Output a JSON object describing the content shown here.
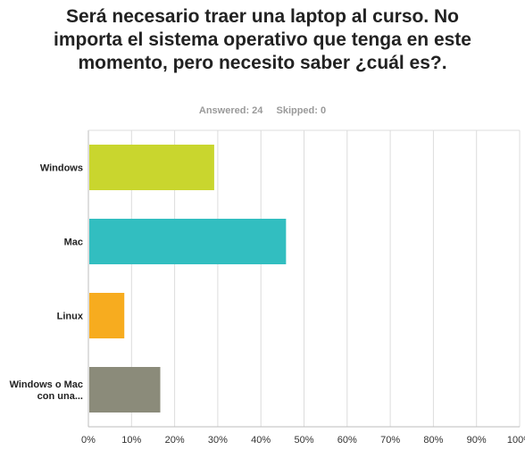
{
  "question": {
    "title": "Será necesario traer una laptop al curso. No importa el sistema operativo que tenga en este momento, pero necesito saber ¿cuál es?.",
    "answered": "Answered: 24",
    "skipped": "Skipped: 0"
  },
  "chart_data": {
    "type": "bar",
    "orientation": "horizontal",
    "title": "Será necesario traer una laptop al curso. No importa el sistema operativo que tenga en este momento, pero necesito saber ¿cuál es?.",
    "categories": [
      "Windows",
      "Mac",
      "Linux",
      "Windows o Mac con una..."
    ],
    "values": [
      29.17,
      45.83,
      8.33,
      16.67
    ],
    "colors": [
      "#c9d62e",
      "#32bec0",
      "#f7ac1f",
      "#8b8b7a"
    ],
    "xlim": [
      0,
      100
    ],
    "x_ticks": [
      "0%",
      "10%",
      "20%",
      "30%",
      "40%",
      "50%",
      "60%",
      "70%",
      "80%",
      "90%",
      "100%"
    ],
    "grid": true,
    "unit": "%"
  }
}
